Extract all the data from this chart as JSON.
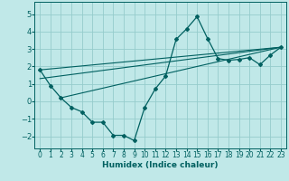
{
  "xlabel": "Humidex (Indice chaleur)",
  "background_color": "#c0e8e8",
  "grid_color": "#96cccc",
  "line_color": "#006060",
  "xlim": [
    -0.5,
    23.5
  ],
  "ylim": [
    -2.7,
    5.7
  ],
  "xticks": [
    0,
    1,
    2,
    3,
    4,
    5,
    6,
    7,
    8,
    9,
    10,
    11,
    12,
    13,
    14,
    15,
    16,
    17,
    18,
    19,
    20,
    21,
    22,
    23
  ],
  "yticks": [
    -2,
    -1,
    0,
    1,
    2,
    3,
    4,
    5
  ],
  "main_x": [
    0,
    1,
    2,
    3,
    4,
    5,
    6,
    7,
    8,
    9,
    10,
    11,
    12,
    13,
    14,
    15,
    16,
    17,
    18,
    19,
    20,
    21,
    22,
    23
  ],
  "main_y": [
    1.8,
    0.9,
    0.2,
    -0.35,
    -0.6,
    -1.2,
    -1.2,
    -1.95,
    -1.95,
    -2.25,
    -0.35,
    0.7,
    1.45,
    3.55,
    4.15,
    4.85,
    3.6,
    2.45,
    2.35,
    2.4,
    2.5,
    2.1,
    2.65,
    3.1
  ],
  "line2_x": [
    0,
    23
  ],
  "line2_y": [
    1.8,
    3.1
  ],
  "line3_x": [
    2,
    23
  ],
  "line3_y": [
    0.2,
    3.1
  ],
  "line4_x": [
    0,
    23
  ],
  "line4_y": [
    1.3,
    3.1
  ]
}
